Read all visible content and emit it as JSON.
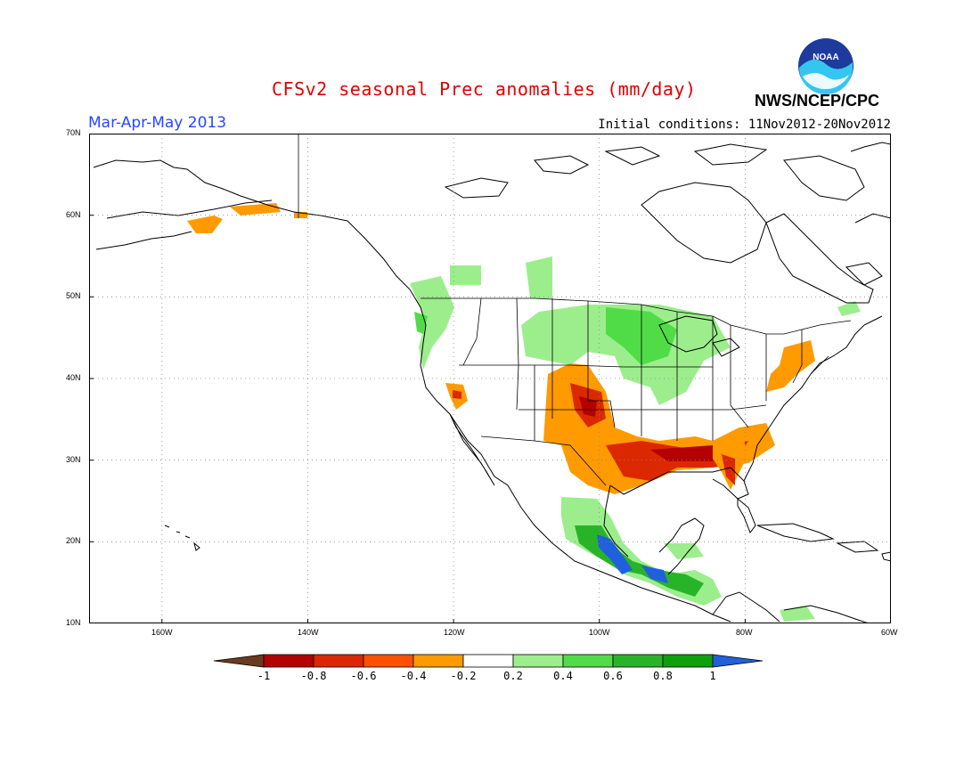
{
  "title": "CFSv2 seasonal Prec anomalies (mm/day)",
  "period": "Mar-Apr-May 2013",
  "initial_conditions": "Initial conditions: 11Nov2012-20Nov2012",
  "agency": "NWS/NCEP/CPC",
  "logo_text": "NOAA",
  "lat_labels": [
    "70N",
    "60N",
    "50N",
    "40N",
    "30N",
    "20N",
    "10N"
  ],
  "lon_labels": [
    "160W",
    "140W",
    "120W",
    "100W",
    "80W",
    "60W"
  ],
  "colorbar": {
    "labels": [
      "-1",
      "-0.8",
      "-0.6",
      "-0.4",
      "-0.2",
      "0.2",
      "0.4",
      "0.6",
      "0.8",
      "1"
    ],
    "colors": [
      "#6b3a1f",
      "#b40000",
      "#dc2800",
      "#ff5000",
      "#ff9a00",
      "#ffffff",
      "#9cee8c",
      "#50dc46",
      "#28b428",
      "#0ca00a",
      "#2060dc"
    ]
  },
  "map_extent": {
    "lon": [
      -170,
      -60
    ],
    "lat": [
      10,
      70
    ]
  },
  "anomaly_regions": [
    {
      "name": "dry-central-plains",
      "class": "-0.4",
      "color": "#ff9a00"
    },
    {
      "name": "dry-gulf-coast",
      "class": "-0.6",
      "color": "#ff5000"
    },
    {
      "name": "dry-southeast-core",
      "class": "-0.8",
      "color": "#b40000"
    },
    {
      "name": "wet-upper-midwest",
      "class": "0.2",
      "color": "#9cee8c"
    },
    {
      "name": "wet-pacific-northwest",
      "class": "0.4",
      "color": "#50dc46"
    },
    {
      "name": "wet-southern-mexico",
      "class": "0.6",
      "color": "#28b428"
    },
    {
      "name": "wet-mexico-core",
      "class": "1",
      "color": "#2060dc"
    }
  ]
}
